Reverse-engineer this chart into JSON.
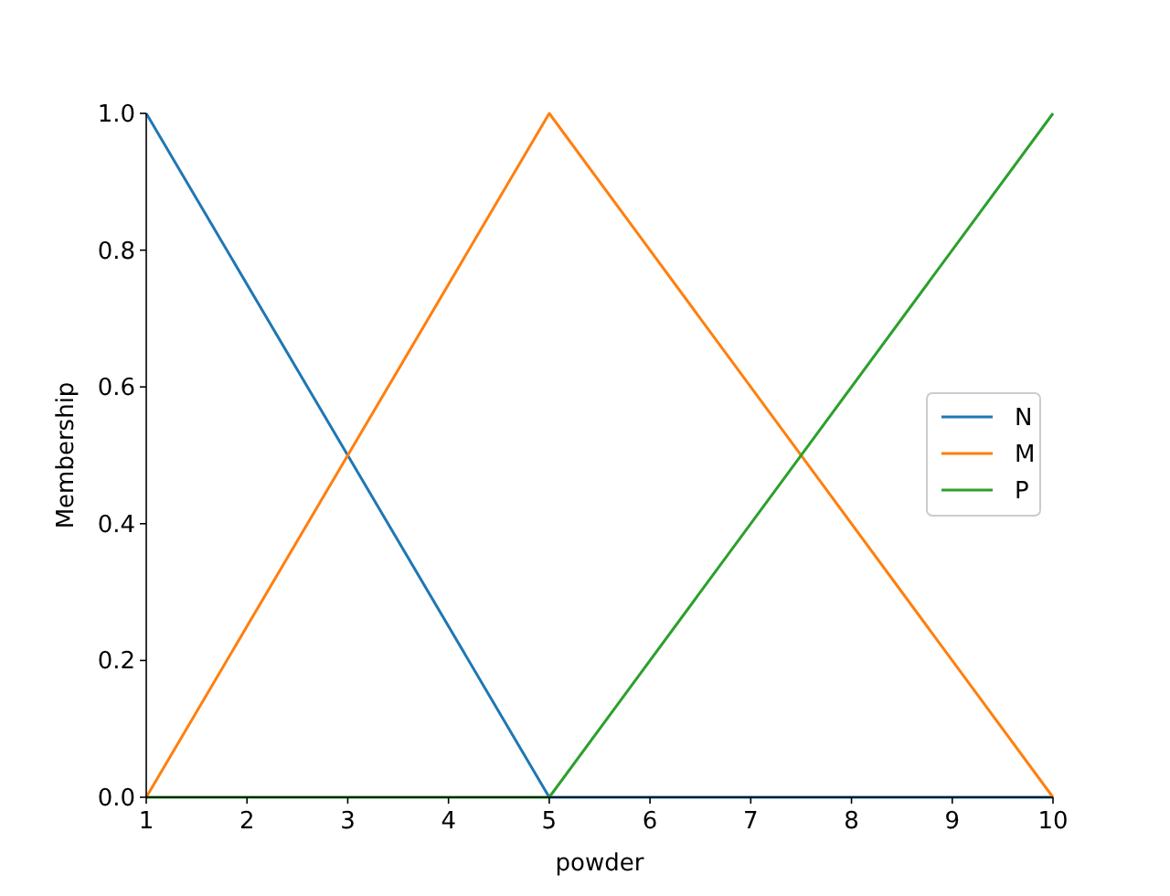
{
  "chart_data": {
    "type": "line",
    "xlabel": "powder",
    "ylabel": "Membership",
    "xlim": [
      1,
      10
    ],
    "ylim": [
      0,
      1
    ],
    "xticks": [
      1,
      2,
      3,
      4,
      5,
      6,
      7,
      8,
      9,
      10
    ],
    "yticks": [
      {
        "value": 0,
        "label": "0.0"
      },
      {
        "value": 0.2,
        "label": "0.2"
      },
      {
        "value": 0.4,
        "label": "0.4"
      },
      {
        "value": 0.6,
        "label": "0.6"
      },
      {
        "value": 0.8,
        "label": "0.8"
      },
      {
        "value": 1,
        "label": "1.0"
      }
    ],
    "x": [
      1,
      5,
      10
    ],
    "legend": "right",
    "grid": false,
    "marker": "none",
    "line_style": "solid",
    "series": [
      {
        "name": "N",
        "color": "#1f77b4",
        "values": [
          1,
          0,
          0
        ]
      },
      {
        "name": "M",
        "color": "#ff7f0e",
        "values": [
          0,
          1,
          0
        ]
      },
      {
        "name": "P",
        "color": "#2ca02c",
        "values": [
          0,
          0,
          1
        ]
      }
    ]
  }
}
